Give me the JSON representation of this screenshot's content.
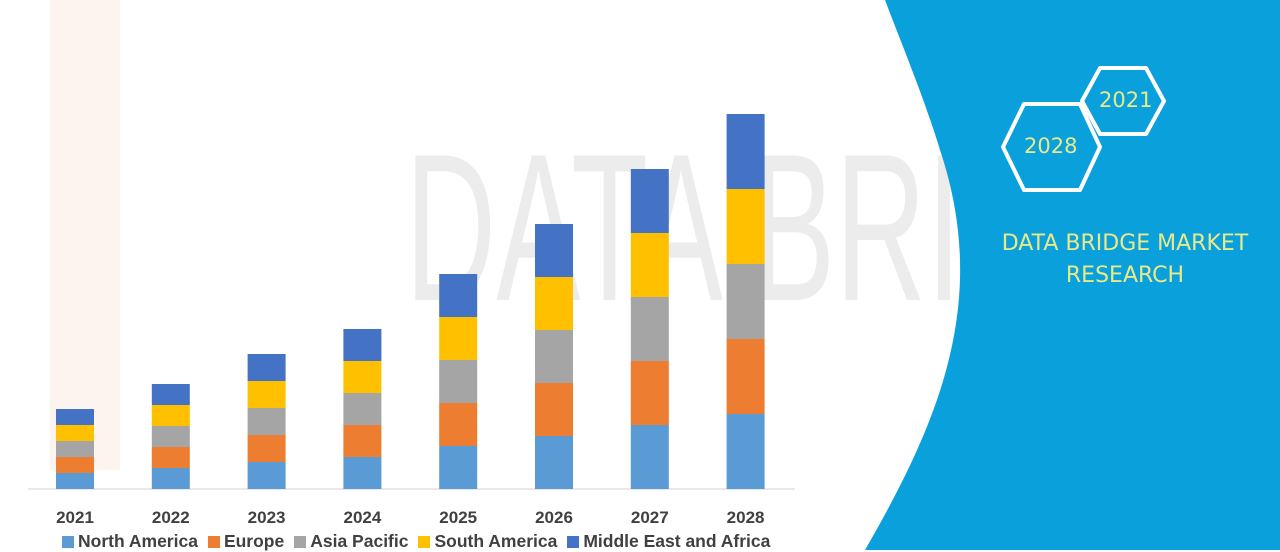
{
  "chart_data": {
    "type": "bar",
    "stacked": true,
    "title": "",
    "xlabel": "",
    "ylabel": "",
    "ylim": [
      0,
      400
    ],
    "grid": false,
    "legend_position": "bottom",
    "categories": [
      "2021",
      "2022",
      "2023",
      "2024",
      "2025",
      "2026",
      "2027",
      "2028"
    ],
    "series": [
      {
        "name": "North America",
        "color": "#5b9bd5",
        "values": [
          16,
          21,
          27,
          32,
          43,
          53,
          64,
          75
        ]
      },
      {
        "name": "Europe",
        "color": "#ed7d31",
        "values": [
          16,
          21,
          27,
          32,
          43,
          53,
          64,
          75
        ]
      },
      {
        "name": "Asia Pacific",
        "color": "#a5a5a5",
        "values": [
          16,
          21,
          27,
          32,
          43,
          53,
          64,
          75
        ]
      },
      {
        "name": "South America",
        "color": "#ffc000",
        "values": [
          16,
          21,
          27,
          32,
          43,
          53,
          64,
          75
        ]
      },
      {
        "name": "Middle East and Africa",
        "color": "#4472c4",
        "values": [
          16,
          21,
          27,
          32,
          43,
          53,
          64,
          75
        ]
      }
    ]
  },
  "panel": {
    "color": "#0aa0dc",
    "hex_labels": [
      "2021",
      "2028"
    ],
    "brand_line1": "DATA BRIDGE MARKET",
    "brand_line2": "RESEARCH",
    "watermark": "DATA BRIDGE MARKET RESEARCH"
  }
}
